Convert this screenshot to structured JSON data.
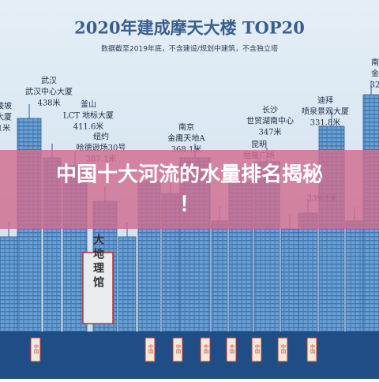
{
  "header": {
    "title": "2020年建成摩天大楼 TOP20",
    "subtitle": "数据截至2019年底，不含建设/规划中建筑，不含独立塔"
  },
  "banner": {
    "lines": [
      "中国十大河流的水量排名揭秘",
      "！"
    ]
  },
  "labels": [
    {
      "lines": [
        "陵坡",
        "大厦",
        "1米"
      ]
    },
    {
      "lines": [
        "武汉",
        "武汉中心大厦",
        "438米"
      ]
    },
    {
      "lines": [
        "釜山",
        "LCT 地标大厦",
        "411.6米"
      ]
    },
    {
      "lines": [
        "纽约",
        "哈德逊场30号",
        "387.1米"
      ]
    },
    {
      "lines": [
        "南京",
        "金鹰天地A",
        "368.1米"
      ]
    },
    {
      "lines": [
        "长沙",
        "世贸湖南中心",
        "347米"
      ]
    },
    {
      "lines": [
        "昆明",
        "恒隆广场"
      ]
    },
    {
      "lines": [
        "迪拜",
        "喷泉景观大厦",
        "331.8米"
      ]
    },
    {
      "lines": [
        "339.1米"
      ]
    },
    {
      "lines": [
        "南",
        "金",
        "32"
      ]
    }
  ],
  "sign": "大地理馆",
  "flag": "中国"
}
